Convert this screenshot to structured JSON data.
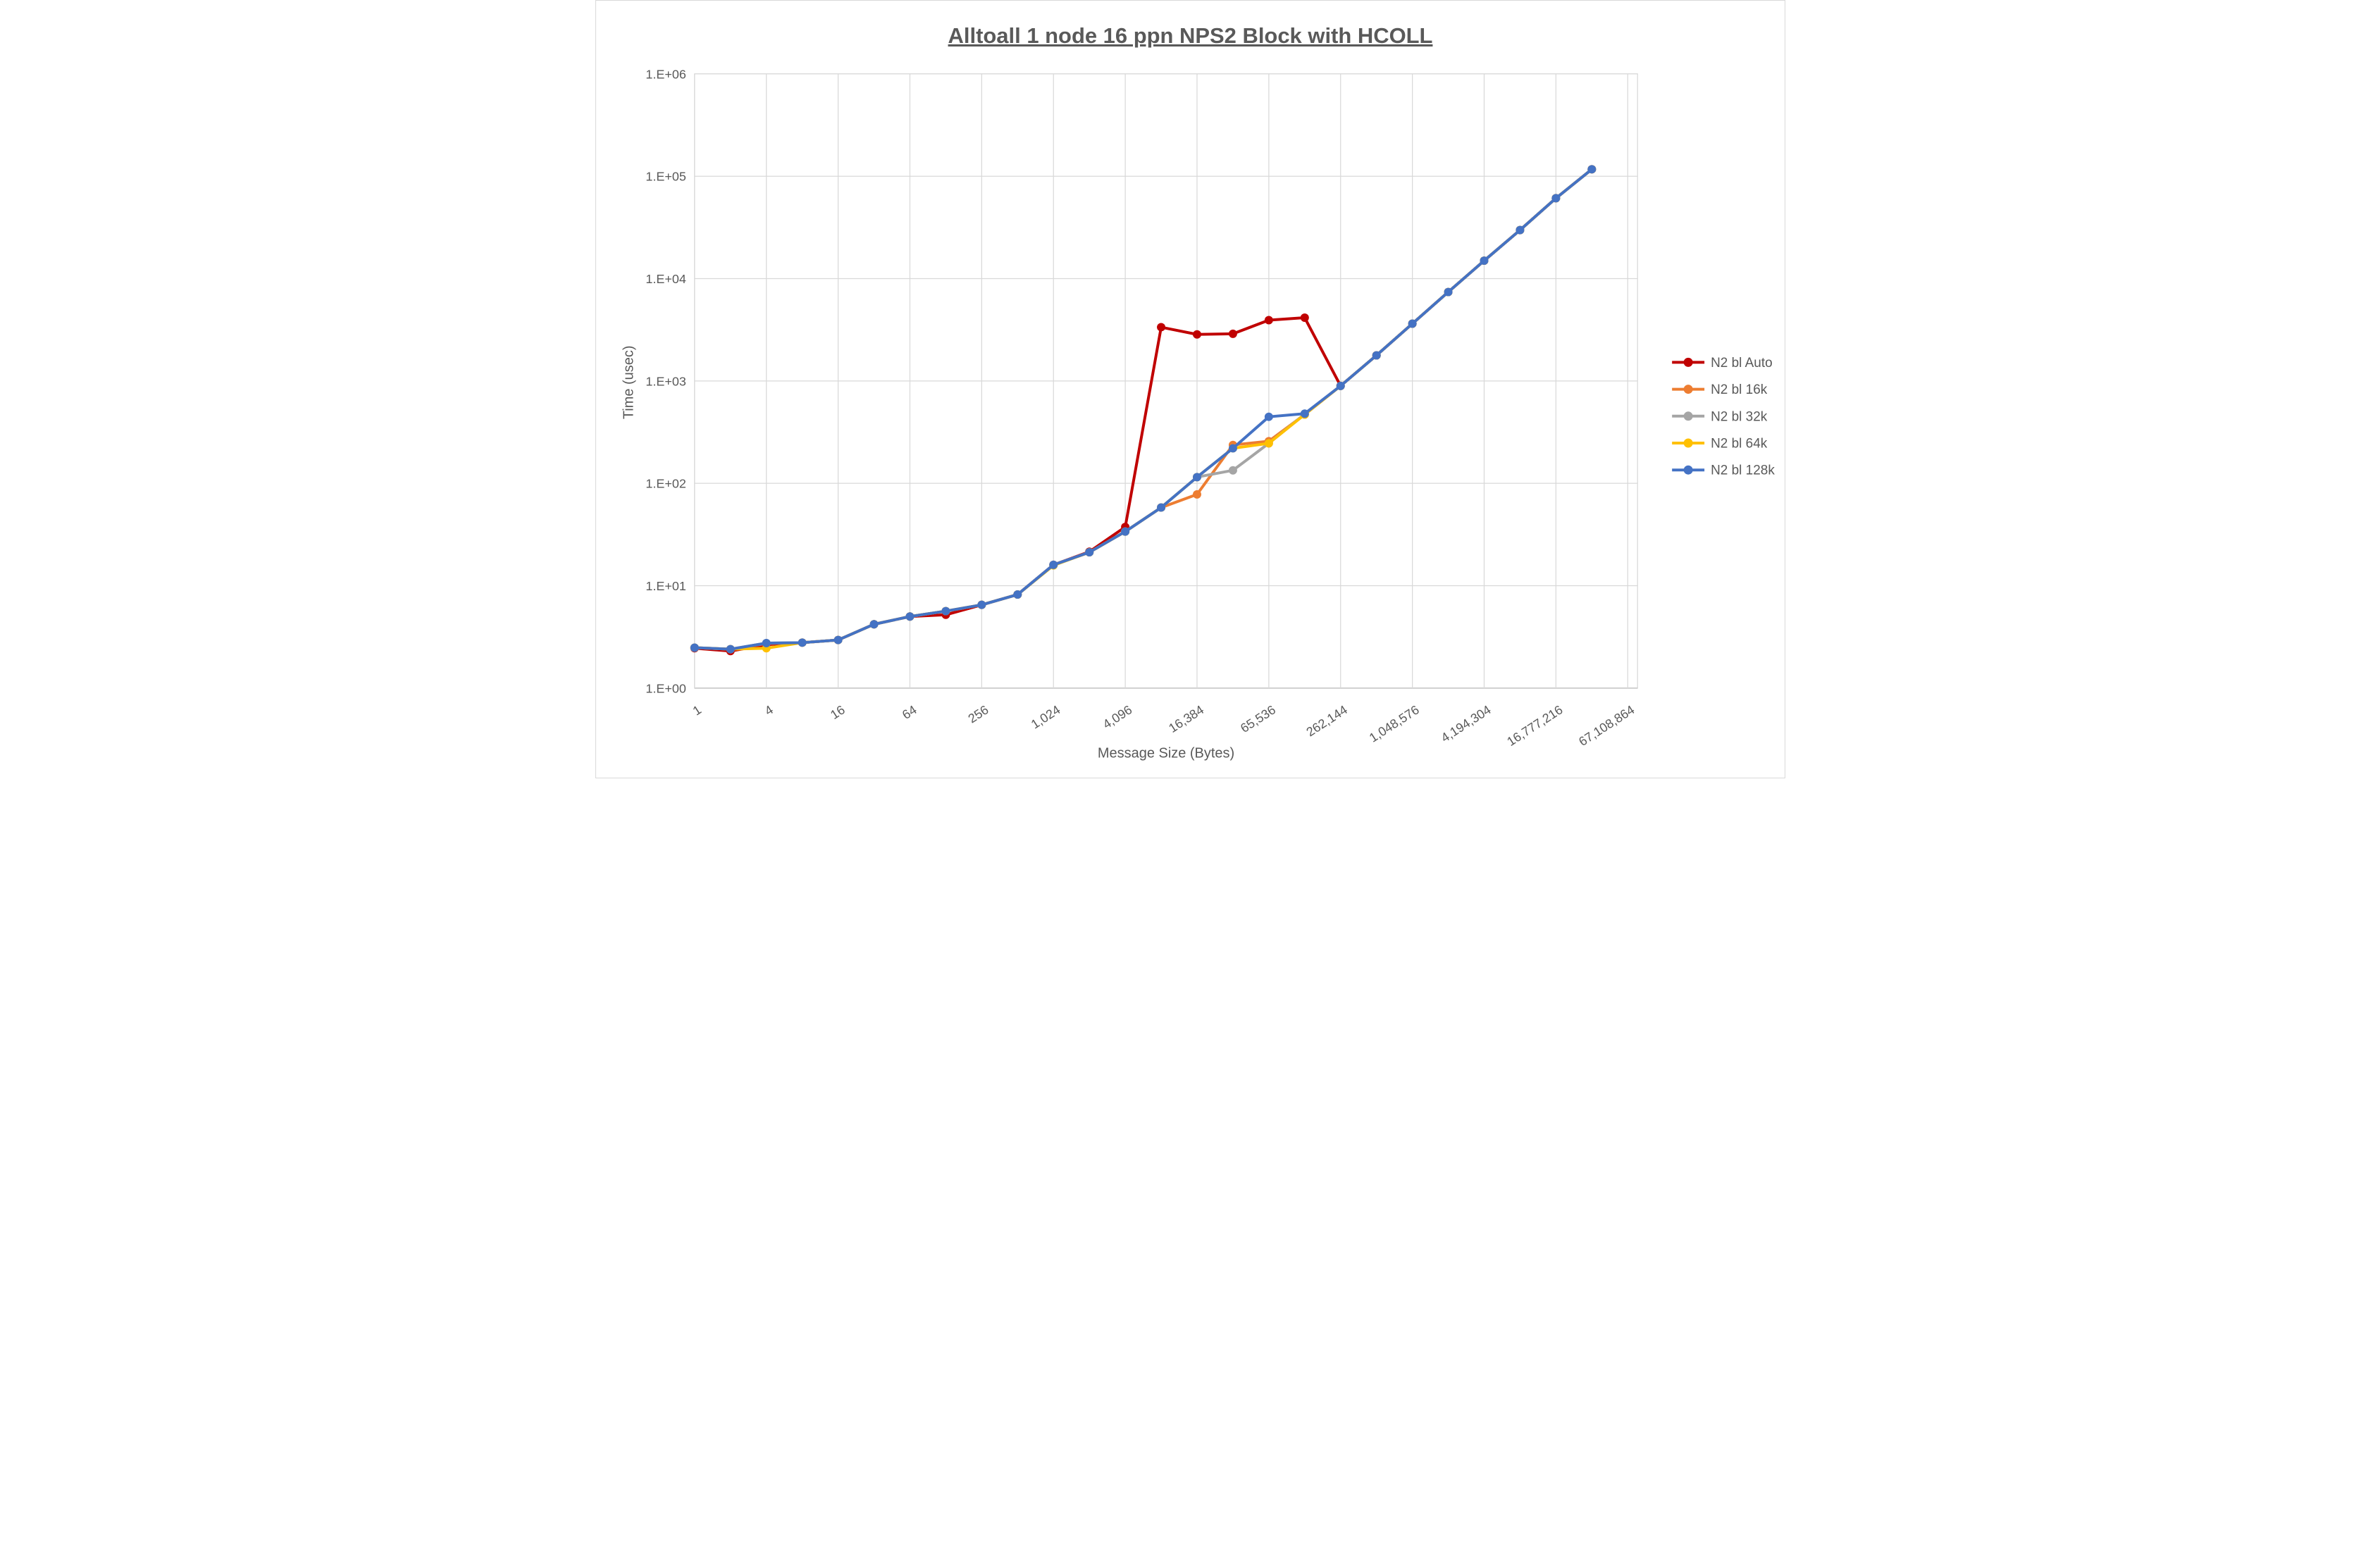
{
  "title": "Alltoall 1 node 16 ppn NPS2 Block with HCOLL",
  "colors": {
    "auto": "#C00000",
    "bl16k": "#ED7D31",
    "bl32k": "#A5A5A5",
    "bl64k": "#FFC000",
    "bl128k": "#4472C4",
    "gridline": "#D9D9D9",
    "axis_line": "#BFBFBF",
    "text": "#595959"
  },
  "chart_data": {
    "type": "line",
    "title": "Alltoall 1 node 16 ppn NPS2 Block with HCOLL",
    "xlabel": "Message Size (Bytes)",
    "ylabel": "Time (usec)",
    "x_scale": "log2-categorical",
    "y_scale": "log10",
    "ylim": [
      1,
      1000000
    ],
    "grid": true,
    "legend_position": "right",
    "y_tick_labels": [
      "1.E+00",
      "1.E+01",
      "1.E+02",
      "1.E+03",
      "1.E+04",
      "1.E+05",
      "1.E+06"
    ],
    "x_tick_labels": [
      "1",
      "4",
      "16",
      "64",
      "256",
      "1,024",
      "4,096",
      "16,384",
      "65,536",
      "262,144",
      "1,048,576",
      "4,194,304",
      "16,777,216",
      "67,108,864"
    ],
    "categories": [
      1,
      2,
      4,
      8,
      16,
      32,
      64,
      128,
      256,
      512,
      1024,
      2048,
      4096,
      8192,
      16384,
      32768,
      65536,
      131072,
      262144,
      524288,
      1048576,
      2097152,
      4194304,
      8388608,
      16777216,
      33554432,
      67108864
    ],
    "series": [
      {
        "name": "N2 bl Auto",
        "color": "#C00000",
        "values": [
          2.45,
          2.3,
          2.65,
          2.78,
          2.95,
          4.2,
          5.0,
          5.2,
          6.5,
          8.2,
          16.0,
          21.5,
          37.5,
          3350,
          2850,
          2890,
          3930,
          4150,
          895,
          1780,
          3630,
          7400,
          14970,
          29800,
          61000,
          117000,
          null
        ]
      },
      {
        "name": "N2 bl 16k",
        "color": "#ED7D31",
        "values": [
          2.48,
          2.4,
          2.72,
          2.78,
          2.95,
          4.2,
          5.0,
          5.65,
          6.5,
          8.2,
          16.0,
          21.2,
          33.8,
          58,
          78,
          237,
          258,
          470,
          895,
          1780,
          3630,
          7400,
          14970,
          29800,
          61000,
          117000,
          null
        ]
      },
      {
        "name": "N2 bl 32k",
        "color": "#A5A5A5",
        "values": [
          2.48,
          2.4,
          2.75,
          2.78,
          2.95,
          4.2,
          5.0,
          5.65,
          6.5,
          8.2,
          16.0,
          21.2,
          33.8,
          58,
          115,
          134,
          246,
          475,
          895,
          1780,
          3630,
          7400,
          14970,
          29800,
          61000,
          117000,
          null
        ]
      },
      {
        "name": "N2 bl 64k",
        "color": "#FFC000",
        "values": [
          2.48,
          2.4,
          2.45,
          2.78,
          2.95,
          4.2,
          5.0,
          5.65,
          6.5,
          8.2,
          15.8,
          21.2,
          33.8,
          58,
          115,
          220,
          246,
          470,
          895,
          1780,
          3630,
          7400,
          14970,
          29800,
          61000,
          117000,
          null
        ]
      },
      {
        "name": "N2 bl 128k",
        "color": "#4472C4",
        "values": [
          2.48,
          2.4,
          2.75,
          2.78,
          2.95,
          4.2,
          5.0,
          5.65,
          6.5,
          8.2,
          16.0,
          21.2,
          33.8,
          58,
          115,
          220,
          447,
          480,
          895,
          1780,
          3630,
          7400,
          14970,
          29800,
          61000,
          117000,
          null
        ]
      }
    ]
  }
}
